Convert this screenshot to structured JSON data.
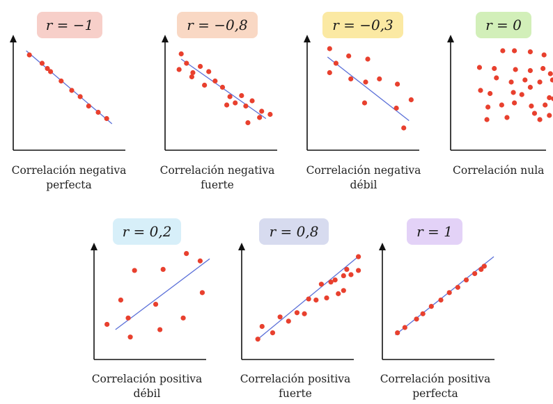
{
  "panels": [
    {
      "label": "r = −1",
      "badge_color": "#f7cfc9",
      "caption_line1": "Correlación negativa",
      "caption_line2": "perfecta",
      "points": [
        [
          0.1,
          0.86
        ],
        [
          0.22,
          0.78
        ],
        [
          0.27,
          0.73
        ],
        [
          0.3,
          0.7
        ],
        [
          0.4,
          0.61
        ],
        [
          0.5,
          0.52
        ],
        [
          0.58,
          0.46
        ],
        [
          0.66,
          0.37
        ],
        [
          0.75,
          0.31
        ],
        [
          0.83,
          0.25
        ]
      ],
      "trend": [
        [
          0.07,
          0.9
        ],
        [
          0.88,
          0.2
        ]
      ]
    },
    {
      "label": "r = −0,8",
      "badge_color": "#f9d8c4",
      "caption_line1": "Correlación negativa",
      "caption_line2": "fuerte",
      "points": [
        [
          0.1,
          0.87
        ],
        [
          0.08,
          0.72
        ],
        [
          0.15,
          0.78
        ],
        [
          0.21,
          0.69
        ],
        [
          0.28,
          0.75
        ],
        [
          0.36,
          0.7
        ],
        [
          0.42,
          0.61
        ],
        [
          0.49,
          0.55
        ],
        [
          0.56,
          0.46
        ],
        [
          0.32,
          0.57
        ],
        [
          0.2,
          0.65
        ],
        [
          0.53,
          0.38
        ],
        [
          0.61,
          0.4
        ],
        [
          0.67,
          0.47
        ],
        [
          0.71,
          0.37
        ],
        [
          0.77,
          0.42
        ],
        [
          0.84,
          0.26
        ],
        [
          0.94,
          0.29
        ],
        [
          0.86,
          0.32
        ],
        [
          0.73,
          0.21
        ]
      ],
      "trend": [
        [
          0.1,
          0.82
        ],
        [
          0.9,
          0.25
        ]
      ]
    },
    {
      "label": "r = −0,3",
      "badge_color": "#fbe9a3",
      "caption_line1": "Correlación negativa",
      "caption_line2": "débil",
      "points": [
        [
          0.16,
          0.92
        ],
        [
          0.22,
          0.78
        ],
        [
          0.34,
          0.85
        ],
        [
          0.52,
          0.82
        ],
        [
          0.16,
          0.69
        ],
        [
          0.36,
          0.63
        ],
        [
          0.5,
          0.6
        ],
        [
          0.63,
          0.63
        ],
        [
          0.8,
          0.58
        ],
        [
          0.49,
          0.4
        ],
        [
          0.79,
          0.35
        ],
        [
          0.93,
          0.43
        ],
        [
          0.86,
          0.16
        ]
      ],
      "trend": [
        [
          0.14,
          0.84
        ],
        [
          0.91,
          0.23
        ]
      ]
    },
    {
      "label": "r = 0",
      "badge_color": "#d2efb9",
      "caption_line1": "Correlación nula",
      "caption_line2": "",
      "points": [
        [
          0.44,
          0.9
        ],
        [
          0.55,
          0.9
        ],
        [
          0.7,
          0.89
        ],
        [
          0.83,
          0.86
        ],
        [
          0.22,
          0.74
        ],
        [
          0.36,
          0.73
        ],
        [
          0.56,
          0.72
        ],
        [
          0.7,
          0.71
        ],
        [
          0.82,
          0.73
        ],
        [
          0.89,
          0.68
        ],
        [
          0.38,
          0.64
        ],
        [
          0.52,
          0.6
        ],
        [
          0.65,
          0.62
        ],
        [
          0.79,
          0.6
        ],
        [
          0.91,
          0.62
        ],
        [
          0.23,
          0.52
        ],
        [
          0.32,
          0.49
        ],
        [
          0.54,
          0.5
        ],
        [
          0.62,
          0.48
        ],
        [
          0.7,
          0.55
        ],
        [
          0.88,
          0.45
        ],
        [
          0.3,
          0.36
        ],
        [
          0.43,
          0.38
        ],
        [
          0.55,
          0.4
        ],
        [
          0.71,
          0.37
        ],
        [
          0.84,
          0.38
        ],
        [
          0.92,
          0.44
        ],
        [
          0.29,
          0.24
        ],
        [
          0.48,
          0.26
        ],
        [
          0.74,
          0.3
        ],
        [
          0.79,
          0.24
        ],
        [
          0.88,
          0.28
        ]
      ],
      "trend": null
    },
    {
      "label": "r = 0,2",
      "badge_color": "#d7eff9",
      "caption_line1": "Correlación positiva",
      "caption_line2": "débil",
      "points": [
        [
          0.07,
          0.28
        ],
        [
          0.2,
          0.51
        ],
        [
          0.33,
          0.79
        ],
        [
          0.27,
          0.34
        ],
        [
          0.29,
          0.16
        ],
        [
          0.53,
          0.47
        ],
        [
          0.6,
          0.8
        ],
        [
          0.57,
          0.23
        ],
        [
          0.79,
          0.34
        ],
        [
          0.82,
          0.95
        ],
        [
          0.95,
          0.88
        ],
        [
          0.97,
          0.58
        ]
      ],
      "trend": [
        [
          0.15,
          0.23
        ],
        [
          1.04,
          0.9
        ]
      ]
    },
    {
      "label": "r = 0,8",
      "badge_color": "#d7dbef",
      "caption_line1": "Correlación positiva",
      "caption_line2": "fuerte",
      "points": [
        [
          0.1,
          0.14
        ],
        [
          0.14,
          0.26
        ],
        [
          0.24,
          0.2
        ],
        [
          0.31,
          0.35
        ],
        [
          0.39,
          0.31
        ],
        [
          0.47,
          0.39
        ],
        [
          0.54,
          0.38
        ],
        [
          0.58,
          0.52
        ],
        [
          0.65,
          0.51
        ],
        [
          0.7,
          0.66
        ],
        [
          0.75,
          0.53
        ],
        [
          0.79,
          0.68
        ],
        [
          0.86,
          0.57
        ],
        [
          0.91,
          0.6
        ],
        [
          0.94,
          0.8
        ],
        [
          0.91,
          0.74
        ],
        [
          0.83,
          0.7
        ],
        [
          0.98,
          0.75
        ],
        [
          1.05,
          0.92
        ],
        [
          1.05,
          0.79
        ]
      ],
      "trend": [
        [
          0.1,
          0.14
        ],
        [
          1.06,
          0.93
        ]
      ]
    },
    {
      "label": "r = 1",
      "badge_color": "#e3d2f7",
      "caption_line1": "Correlación positiva",
      "caption_line2": "perfecta",
      "points": [
        [
          0.09,
          0.2
        ],
        [
          0.16,
          0.25
        ],
        [
          0.27,
          0.33
        ],
        [
          0.33,
          0.38
        ],
        [
          0.41,
          0.45
        ],
        [
          0.5,
          0.51
        ],
        [
          0.58,
          0.58
        ],
        [
          0.66,
          0.63
        ],
        [
          0.74,
          0.7
        ],
        [
          0.82,
          0.76
        ],
        [
          0.88,
          0.8
        ],
        [
          0.91,
          0.83
        ]
      ],
      "trend": [
        [
          0.07,
          0.18
        ],
        [
          1.0,
          0.92
        ]
      ]
    }
  ],
  "colors": {
    "point": "#e8402e",
    "trend": "#5a6fd8",
    "axis": "#111111"
  }
}
